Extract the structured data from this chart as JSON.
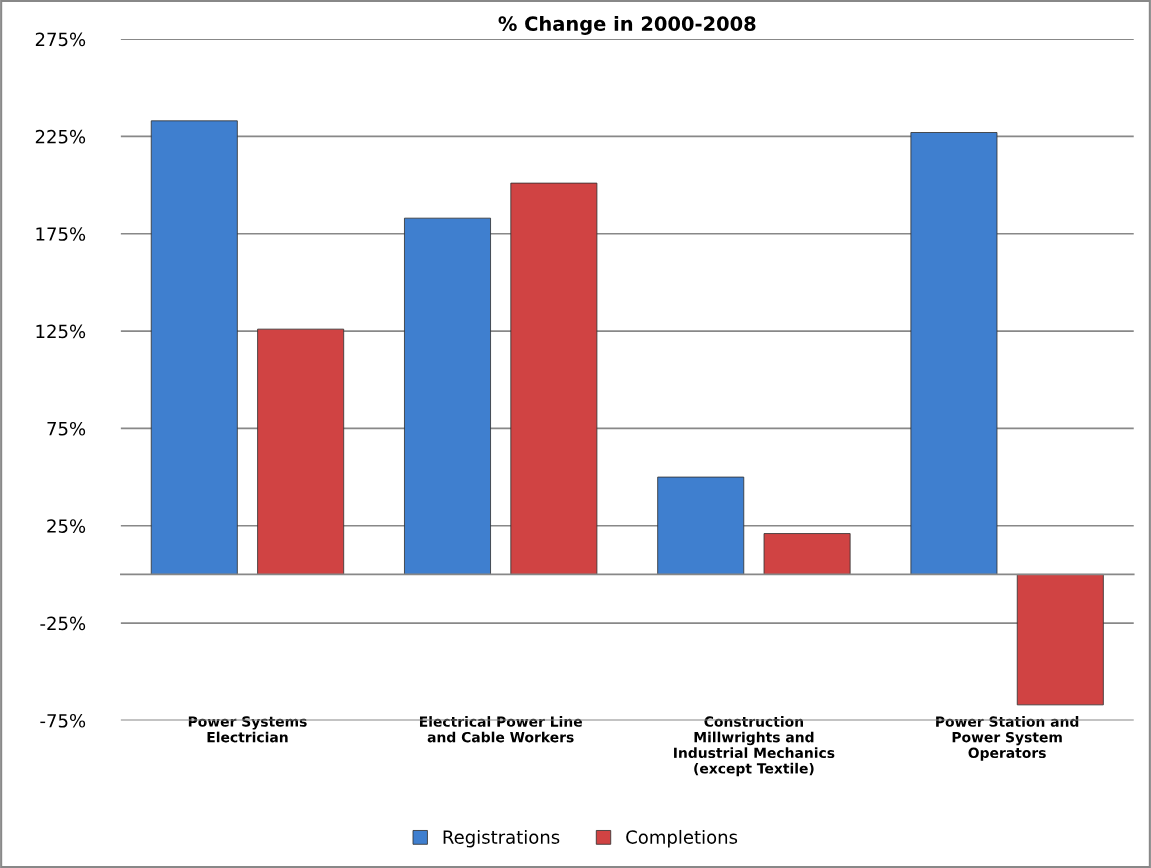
{
  "chart_data": {
    "type": "bar",
    "title": "% Change in 2000-2008",
    "categories": [
      "Power Systems\nElectrician",
      "Electrical Power Line\nand Cable Workers",
      "Construction\nMillwrights and\nIndustrial Mechanics\n(except Textile)",
      "Power Station and\nPower System\nOperators"
    ],
    "series": [
      {
        "name": "Registrations",
        "color": "#3f7fcf",
        "values": [
          233,
          183,
          50,
          227
        ]
      },
      {
        "name": "Completions",
        "color": "#d04343",
        "values": [
          126,
          201,
          21,
          -67
        ]
      }
    ],
    "ylim": [
      -75,
      275
    ],
    "yticks": [
      {
        "value": -75,
        "label": "-75%"
      },
      {
        "value": -25,
        "label": "-25%"
      },
      {
        "value": 25,
        "label": "25%"
      },
      {
        "value": 75,
        "label": "75%"
      },
      {
        "value": 125,
        "label": "125%"
      },
      {
        "value": 175,
        "label": "175%"
      },
      {
        "value": 225,
        "label": "225%"
      },
      {
        "value": 275,
        "label": "275%"
      }
    ],
    "grid": "y",
    "legend": "bottom"
  }
}
